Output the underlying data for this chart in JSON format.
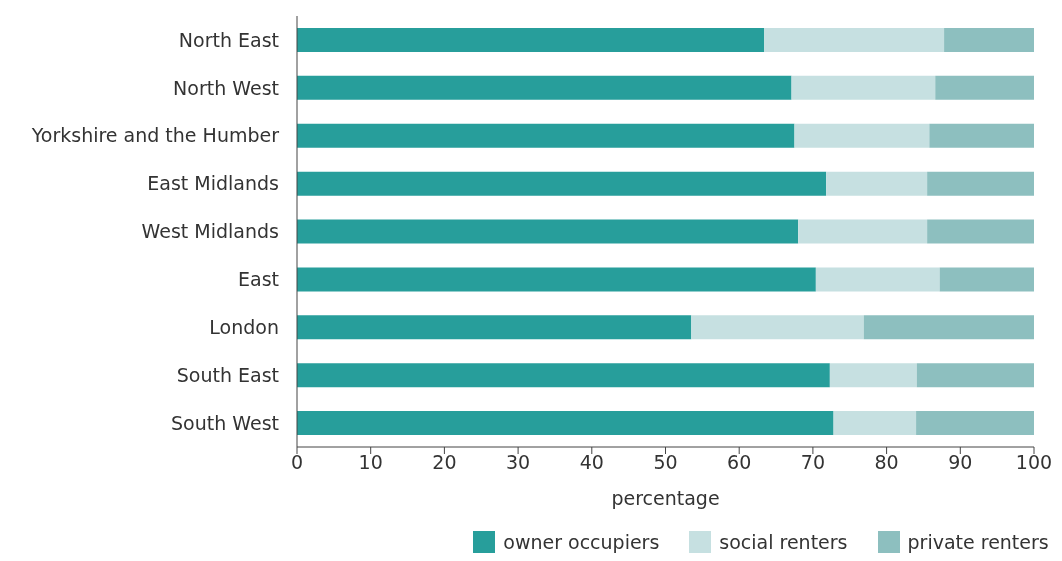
{
  "chart_data": {
    "type": "bar",
    "orientation": "horizontal",
    "stacked": true,
    "xlabel": "percentage",
    "categories": [
      "North East",
      "North West",
      "Yorkshire and the Humber",
      "East Midlands",
      "West Midlands",
      "East",
      "London",
      "South East",
      "South West"
    ],
    "series": [
      {
        "name": "owner occupiers",
        "color": "#279e9b",
        "values": [
          63.4,
          67.1,
          67.5,
          71.8,
          68.0,
          70.4,
          53.5,
          72.3,
          72.8
        ]
      },
      {
        "name": "social renters",
        "color": "#c6e0e1",
        "values": [
          24.4,
          19.5,
          18.3,
          13.7,
          17.5,
          16.8,
          23.4,
          11.8,
          11.2
        ]
      },
      {
        "name": "private renters",
        "color": "#8dbfbf",
        "values": [
          12.2,
          13.4,
          14.2,
          14.5,
          14.5,
          12.8,
          23.1,
          15.9,
          16.0
        ]
      }
    ],
    "xlim": [
      0,
      100
    ],
    "xticks": [
      0,
      10,
      20,
      30,
      40,
      50,
      60,
      70,
      80,
      90,
      100
    ],
    "grid": false,
    "legend": "bottom"
  }
}
